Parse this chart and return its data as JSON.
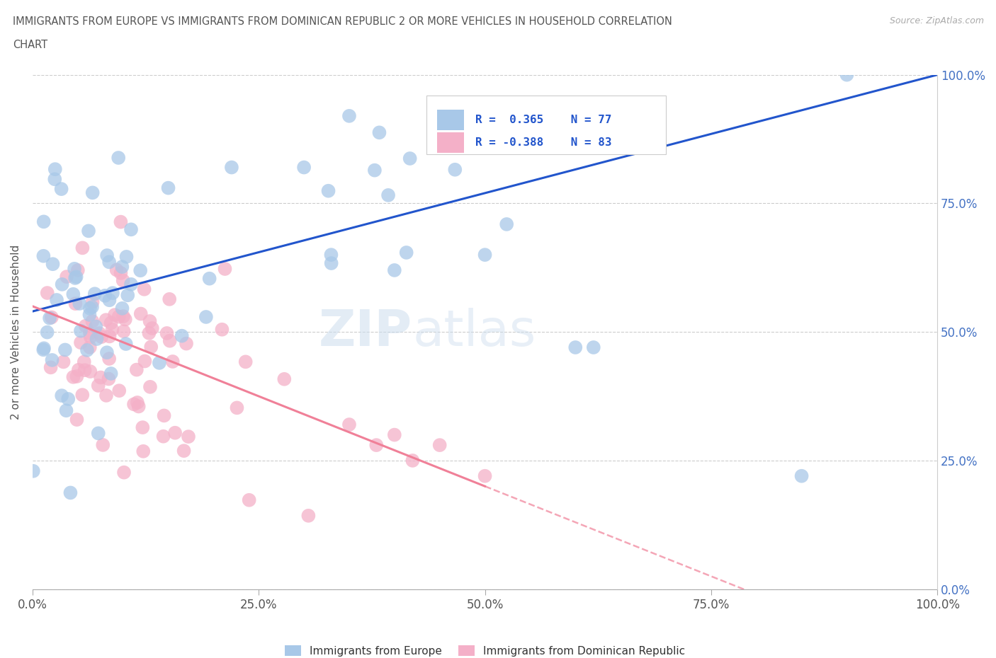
{
  "title_line1": "IMMIGRANTS FROM EUROPE VS IMMIGRANTS FROM DOMINICAN REPUBLIC 2 OR MORE VEHICLES IN HOUSEHOLD CORRELATION",
  "title_line2": "CHART",
  "source": "Source: ZipAtlas.com",
  "ylabel": "2 or more Vehicles in Household",
  "xlim": [
    0,
    1.0
  ],
  "ylim": [
    0,
    1.0
  ],
  "xticks": [
    0.0,
    0.25,
    0.5,
    0.75,
    1.0
  ],
  "yticks": [
    0.0,
    0.25,
    0.5,
    0.75,
    1.0
  ],
  "R_europe": 0.365,
  "R_dr": -0.388,
  "N_europe": 77,
  "N_dr": 83,
  "color_europe": "#a8c8e8",
  "color_dr": "#f4b0c8",
  "line_color_europe": "#2255cc",
  "line_color_dr": "#f08098",
  "watermark_zip": "ZIP",
  "watermark_atlas": "atlas",
  "eu_line_start_x": 0.0,
  "eu_line_start_y": 0.54,
  "eu_line_end_x": 1.0,
  "eu_line_end_y": 1.0,
  "dr_line_start_x": 0.0,
  "dr_line_start_y": 0.55,
  "dr_line_end_x": 0.5,
  "dr_line_end_y": 0.2,
  "legend_text_eu": "R =  0.365   N = 77",
  "legend_text_dr": "R = -0.388   N = 83",
  "bottom_legend_eu": "Immigrants from Europe",
  "bottom_legend_dr": "Immigrants from Dominican Republic"
}
